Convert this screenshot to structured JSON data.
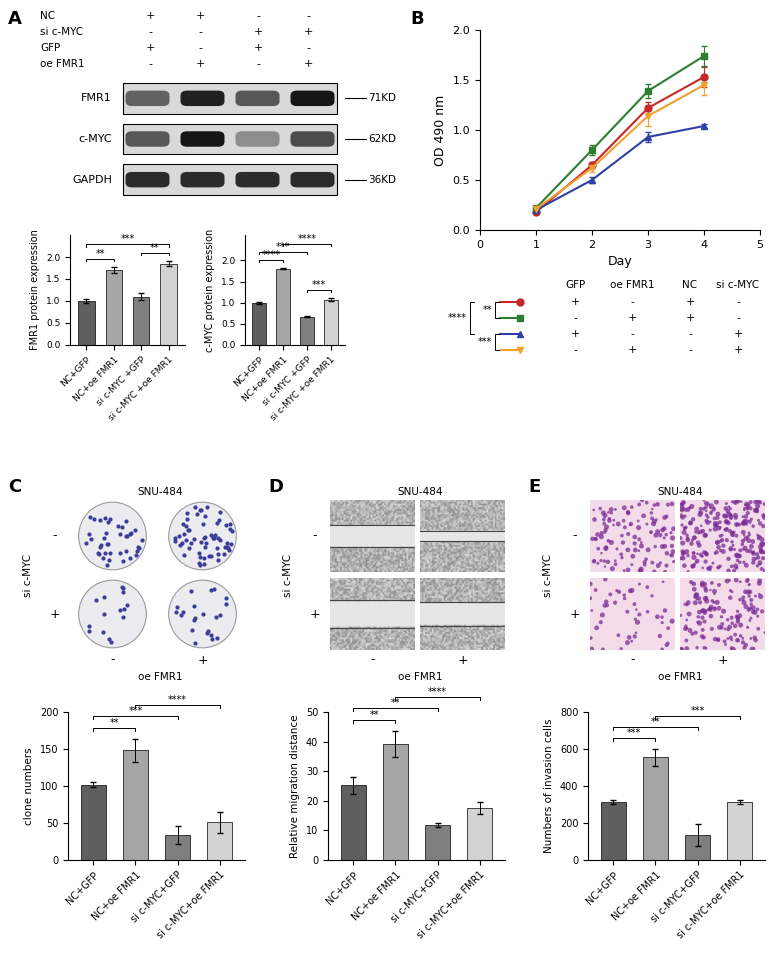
{
  "panel_labels": [
    "A",
    "B",
    "C",
    "D",
    "E"
  ],
  "panel_A": {
    "conditions": {
      "rows": [
        "NC",
        "si c-MYC",
        "GFP",
        "oe FMR1"
      ],
      "signs": [
        [
          "+",
          "+",
          "-",
          "-"
        ],
        [
          "-",
          "-",
          "+",
          "+"
        ],
        [
          "+",
          "-",
          "+",
          "-"
        ],
        [
          "-",
          "+",
          "-",
          "+"
        ]
      ]
    },
    "blot": {
      "proteins": [
        "FMR1",
        "c-MYC",
        "GAPDH"
      ],
      "sizes": [
        "71KD",
        "62KD",
        "36KD"
      ]
    }
  },
  "image_panels": [
    {
      "title": "SNU-484",
      "row_label": "si c-MYC",
      "column_label": "oe FMR1",
      "row_signs": [
        "-",
        "+"
      ],
      "column_signs": [
        "-",
        "+"
      ]
    },
    {
      "title": "SNU-484",
      "row_label": "si c-MYC",
      "column_label": "oe FMR1",
      "row_signs": [
        "-",
        "+"
      ],
      "column_signs": [
        "-",
        "+"
      ]
    },
    {
      "title": "SNU-484",
      "row_label": "si c-MYC",
      "column_label": "oe FMR1",
      "row_signs": [
        "-",
        "+"
      ],
      "column_signs": [
        "-",
        "+"
      ]
    }
  ],
  "chart_data": [
    {
      "type": "bar",
      "ylabel": "FMR1 protein expression",
      "categories": [
        "NC+GFP",
        "NC+oe FMR1",
        "si c-MYC +GFP",
        "si c-MYC +oe FMR1"
      ],
      "values": [
        1.0,
        1.7,
        1.1,
        1.85
      ],
      "errors": [
        0.05,
        0.07,
        0.08,
        0.06
      ],
      "colors": [
        "#5f5f5f",
        "#a6a6a6",
        "#7f7f7f",
        "#d3d3d3"
      ],
      "ylim": [
        0,
        2.5
      ],
      "yticks": [
        0.0,
        0.5,
        1.0,
        1.5,
        2.0
      ],
      "annotations": [
        {
          "pair": [
            0,
            1
          ],
          "label": "**"
        },
        {
          "pair": [
            2,
            3
          ],
          "label": "**"
        },
        {
          "pair": [
            0,
            3
          ],
          "label": "***"
        }
      ]
    },
    {
      "type": "bar",
      "ylabel": "c-MYC protein expression",
      "categories": [
        "NC+GFP",
        "NC+oe FMR1",
        "si c-MYC +GFP",
        "si c-MYC +oe FMR1"
      ],
      "values": [
        1.0,
        1.8,
        0.67,
        1.07
      ],
      "errors": [
        0.02,
        0.01,
        0.01,
        0.03
      ],
      "colors": [
        "#5f5f5f",
        "#a6a6a6",
        "#7f7f7f",
        "#d3d3d3"
      ],
      "ylim": [
        0,
        2.6
      ],
      "yticks": [
        0.0,
        0.5,
        1.0,
        1.5,
        2.0
      ],
      "annotations": [
        {
          "pair": [
            0,
            1
          ],
          "label": "****"
        },
        {
          "pair": [
            2,
            3
          ],
          "label": "***"
        },
        {
          "pair": [
            0,
            2
          ],
          "label": "***"
        },
        {
          "pair": [
            1,
            3
          ],
          "label": "****"
        }
      ]
    },
    {
      "type": "line",
      "xlabel": "Day",
      "ylabel": "OD 490 nm",
      "x": [
        1,
        2,
        3,
        4
      ],
      "xlim": [
        0,
        5
      ],
      "xticks": [
        0,
        1,
        2,
        3,
        4,
        5
      ],
      "ylim": [
        0,
        2.0
      ],
      "yticks": [
        0.0,
        0.5,
        1.0,
        1.5,
        2.0
      ],
      "legend_columns": [
        "GFP",
        "oe FMR1",
        "NC",
        "si c-MYC"
      ],
      "series": [
        {
          "color": "#c62828",
          "marker": "circle",
          "values": [
            0.18,
            0.65,
            1.22,
            1.53
          ],
          "errors": [
            0.02,
            0.03,
            0.06,
            0.1
          ],
          "signs": [
            "+",
            "-",
            "+",
            "-"
          ]
        },
        {
          "color": "#2e7d32",
          "marker": "square",
          "values": [
            0.22,
            0.8,
            1.39,
            1.74
          ],
          "errors": [
            0.02,
            0.05,
            0.07,
            0.1
          ],
          "signs": [
            "-",
            "+",
            "+",
            "-"
          ]
        },
        {
          "color": "#2f3fa8",
          "marker": "triangle_up",
          "values": [
            0.2,
            0.5,
            0.93,
            1.04
          ],
          "errors": [
            0.02,
            0.03,
            0.05,
            0.02
          ],
          "signs": [
            "+",
            "-",
            "-",
            "+"
          ]
        },
        {
          "color": "#f0a030",
          "marker": "triangle_down",
          "values": [
            0.21,
            0.62,
            1.14,
            1.45
          ],
          "errors": [
            0.02,
            0.04,
            0.1,
            0.1
          ],
          "signs": [
            "-",
            "+",
            "-",
            "+"
          ]
        }
      ],
      "annotations": [
        {
          "pair": [
            0,
            1
          ],
          "label": "**"
        },
        {
          "pair": [
            2,
            3
          ],
          "label": "***"
        },
        {
          "pair": [
            0,
            2
          ],
          "label": "****"
        }
      ]
    },
    {
      "type": "bar",
      "ylabel": "clone numbers",
      "categories": [
        "NC+GFP",
        "NC+oe FMR1",
        "si c-MYC+GFP",
        "si c-MYC+oe FMR1"
      ],
      "values": [
        102,
        148,
        34,
        51
      ],
      "errors": [
        3,
        16,
        12,
        14
      ],
      "colors": [
        "#5f5f5f",
        "#a6a6a6",
        "#7f7f7f",
        "#d3d3d3"
      ],
      "ylim": [
        0,
        200
      ],
      "yticks": [
        0,
        50,
        100,
        150,
        200
      ],
      "annotations": [
        {
          "pair": [
            0,
            1
          ],
          "label": "**"
        },
        {
          "pair": [
            0,
            2
          ],
          "label": "***"
        },
        {
          "pair": [
            1,
            3
          ],
          "label": "****"
        }
      ]
    },
    {
      "type": "bar",
      "ylabel": "Relative migration distance",
      "categories": [
        "NC+GFP",
        "NC+oe FMR1",
        "si c-MYC+GFP",
        "si c-MYC+oe FMR1"
      ],
      "values": [
        25.2,
        39.2,
        11.8,
        17.5
      ],
      "errors": [
        3,
        4.5,
        0.8,
        2
      ],
      "colors": [
        "#5f5f5f",
        "#a6a6a6",
        "#7f7f7f",
        "#d3d3d3"
      ],
      "ylim": [
        0,
        50
      ],
      "yticks": [
        0,
        10,
        20,
        30,
        40,
        50
      ],
      "annotations": [
        {
          "pair": [
            0,
            1
          ],
          "label": "**"
        },
        {
          "pair": [
            0,
            2
          ],
          "label": "**"
        },
        {
          "pair": [
            1,
            3
          ],
          "label": "****"
        }
      ]
    },
    {
      "type": "bar",
      "ylabel": "Numbers of invasion cells",
      "categories": [
        "NC+GFP",
        "NC+oe FMR1",
        "si c-MYC+GFP",
        "si c-MYC+oe FMR1"
      ],
      "values": [
        315,
        555,
        133,
        315
      ],
      "errors": [
        10,
        45,
        60,
        12
      ],
      "colors": [
        "#5f5f5f",
        "#a6a6a6",
        "#7f7f7f",
        "#d3d3d3"
      ],
      "ylim": [
        0,
        800
      ],
      "yticks": [
        0,
        200,
        400,
        600,
        800
      ],
      "annotations": [
        {
          "pair": [
            0,
            1
          ],
          "label": "***"
        },
        {
          "pair": [
            0,
            2
          ],
          "label": "**"
        },
        {
          "pair": [
            1,
            3
          ],
          "label": "***"
        }
      ]
    }
  ]
}
